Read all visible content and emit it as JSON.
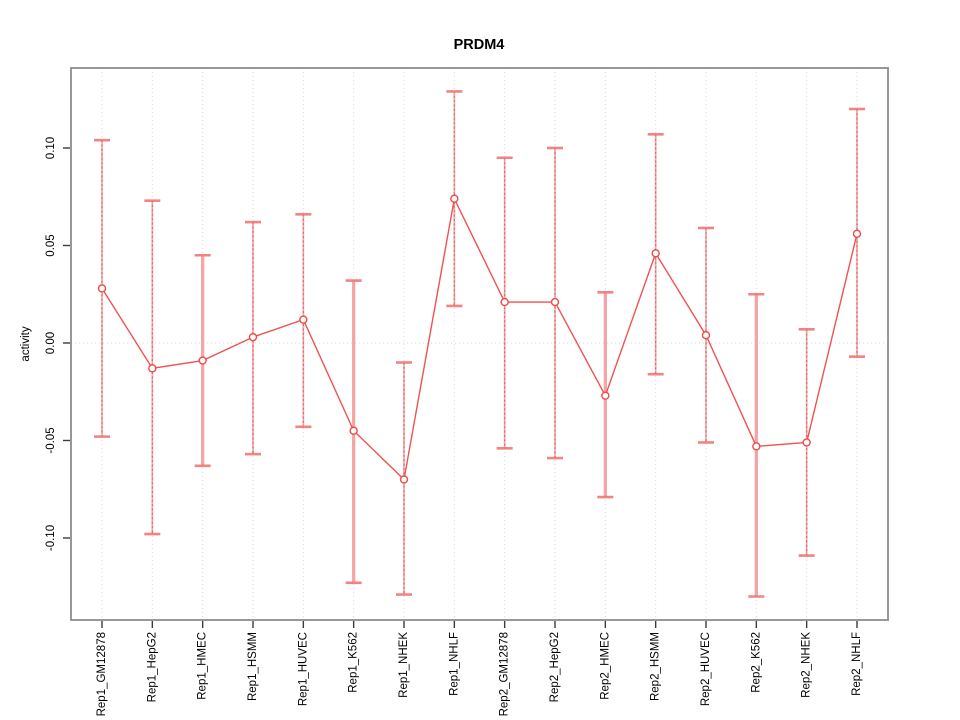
{
  "page": {
    "background": "#ffffff"
  },
  "chart_data": {
    "type": "line",
    "title": "PRDM4",
    "xlabel": "",
    "ylabel": "activity",
    "legend": "none",
    "categories": [
      "Rep1_GM12878",
      "Rep1_HepG2",
      "Rep1_HMEC",
      "Rep1_HSMM",
      "Rep1_HUVEC",
      "Rep1_K562",
      "Rep1_NHEK",
      "Rep1_NHLF",
      "Rep2_GM12878",
      "Rep2_HepG2",
      "Rep2_HMEC",
      "Rep2_HSMM",
      "Rep2_HUVEC",
      "Rep2_K562",
      "Rep2_NHEK",
      "Rep2_NHLF"
    ],
    "series": [
      {
        "name": "activity",
        "values": [
          0.028,
          -0.013,
          -0.009,
          0.003,
          0.012,
          -0.045,
          -0.07,
          0.074,
          0.021,
          0.021,
          -0.027,
          0.046,
          0.004,
          -0.053,
          -0.051,
          0.056
        ],
        "ci_low": [
          -0.048,
          -0.098,
          -0.063,
          -0.057,
          -0.043,
          -0.123,
          -0.129,
          0.019,
          -0.054,
          -0.059,
          -0.079,
          -0.016,
          -0.051,
          -0.13,
          -0.109,
          -0.007
        ],
        "ci_high": [
          0.104,
          0.073,
          0.045,
          0.062,
          0.066,
          0.032,
          -0.01,
          0.129,
          0.095,
          0.1,
          0.026,
          0.107,
          0.059,
          0.025,
          0.007,
          0.12
        ]
      }
    ],
    "bar_emphasis": [
      false,
      false,
      true,
      false,
      false,
      true,
      false,
      false,
      false,
      false,
      true,
      false,
      false,
      true,
      false,
      false
    ],
    "yticks": [
      -0.1,
      -0.05,
      0.0,
      0.05,
      0.1
    ],
    "ytick_labels": [
      "-0.10",
      "-0.05",
      "0.00",
      "0.05",
      "0.10"
    ],
    "ylim": [
      -0.142,
      0.141
    ],
    "grid": {
      "vertical_dotted_per_category": true,
      "horizontal_zero_line_dotted": true
    },
    "colors": {
      "series_line": "#ee4949",
      "marker_stroke": "#ee4949",
      "marker_fill": "#ffffff",
      "error_bar_thin": "#ef6f6f",
      "error_bar_dash_overlay": "#cc3b3b",
      "error_bar_emphasis": "#f5a3a3",
      "error_bar_cap": "#f17676",
      "grid": "#d7d7d7",
      "box_border": "#8c8c8c",
      "tick": "#3c3c3c",
      "text": "#000000"
    }
  }
}
